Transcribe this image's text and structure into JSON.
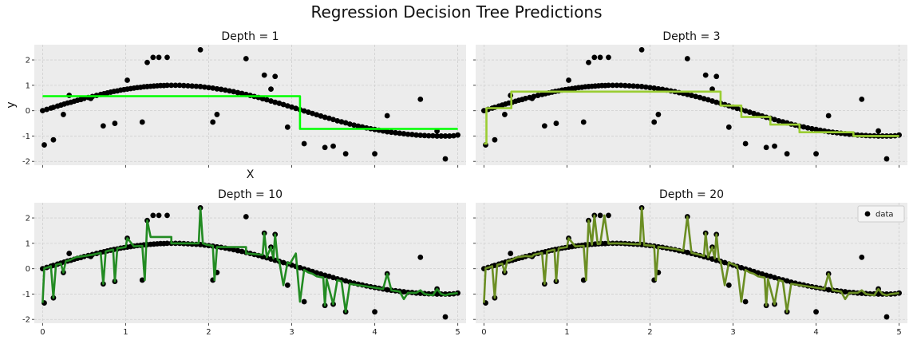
{
  "figure": {
    "suptitle": "Regression Decision Tree Predictions",
    "legend_label": "data"
  },
  "chart_data": {
    "type": "scatter",
    "grid": true,
    "xlim": [
      -0.1,
      5.1
    ],
    "ylim": [
      -2.15,
      2.6
    ],
    "xticks": [
      0,
      1,
      2,
      3,
      4,
      5
    ],
    "yticks": [
      -2,
      -1,
      0,
      1,
      2
    ],
    "data_color": "#000000",
    "data": {
      "x": [
        0.0,
        0.05,
        0.1,
        0.13,
        0.18,
        0.22,
        0.26,
        0.3,
        0.34,
        0.38,
        0.42,
        0.46,
        0.5,
        0.55,
        0.6,
        0.65,
        0.7,
        0.74,
        0.78,
        0.82,
        0.86,
        0.9,
        0.94,
        0.98,
        1.02,
        1.06,
        1.1,
        1.14,
        1.18,
        1.22,
        1.26,
        1.3,
        1.34,
        1.38,
        1.42,
        1.46,
        1.5,
        1.55,
        1.6,
        1.65,
        1.7,
        1.75,
        1.8,
        1.85,
        1.9,
        1.95,
        2.0,
        2.05,
        2.1,
        2.15,
        2.2,
        2.25,
        2.3,
        2.35,
        2.4,
        2.45,
        2.5,
        2.55,
        2.6,
        2.65,
        2.7,
        2.75,
        2.8,
        2.85,
        2.9,
        2.95,
        3.0,
        3.05,
        3.1,
        3.15,
        3.2,
        3.25,
        3.3,
        3.35,
        3.4,
        3.45,
        3.5,
        3.55,
        3.6,
        3.65,
        3.7,
        3.75,
        3.8,
        3.85,
        3.9,
        3.95,
        4.0,
        4.05,
        4.1,
        4.15,
        4.2,
        4.25,
        4.3,
        4.35,
        4.4,
        4.45,
        4.5,
        4.55,
        4.6,
        4.65,
        4.7,
        4.75,
        4.8,
        4.85,
        4.9,
        4.95,
        5.0,
        0.02,
        0.13,
        0.25,
        0.32,
        0.58,
        0.73,
        0.87,
        1.02,
        1.2,
        1.26,
        1.33,
        1.4,
        1.5,
        1.9,
        2.05,
        2.1,
        2.45,
        2.67,
        2.75,
        2.8,
        2.95,
        3.15,
        3.4,
        3.5,
        3.65,
        4.0,
        4.15,
        4.55,
        4.85,
        4.75
      ],
      "y": [
        0.0,
        0.05,
        0.1,
        0.13,
        0.18,
        0.22,
        0.26,
        0.3,
        0.33,
        0.37,
        0.41,
        0.44,
        0.48,
        0.52,
        0.56,
        0.6,
        0.64,
        0.67,
        0.7,
        0.73,
        0.76,
        0.78,
        0.81,
        0.83,
        0.85,
        0.87,
        0.89,
        0.91,
        0.92,
        0.94,
        0.95,
        0.96,
        0.97,
        0.98,
        0.99,
        0.99,
        1.0,
        1.0,
        1.0,
        1.0,
        0.99,
        0.98,
        0.97,
        0.96,
        0.95,
        0.93,
        0.91,
        0.89,
        0.86,
        0.84,
        0.81,
        0.78,
        0.75,
        0.71,
        0.68,
        0.64,
        0.6,
        0.56,
        0.52,
        0.47,
        0.43,
        0.38,
        0.33,
        0.29,
        0.24,
        0.19,
        0.14,
        0.09,
        0.04,
        -0.01,
        -0.06,
        -0.11,
        -0.16,
        -0.21,
        -0.26,
        -0.3,
        -0.35,
        -0.4,
        -0.44,
        -0.48,
        -0.53,
        -0.57,
        -0.61,
        -0.64,
        -0.68,
        -0.71,
        -0.74,
        -0.77,
        -0.8,
        -0.83,
        -0.85,
        -0.87,
        -0.89,
        -0.91,
        -0.93,
        -0.94,
        -0.96,
        -0.97,
        -0.98,
        -0.99,
        -0.99,
        -1.0,
        -1.0,
        -1.0,
        -1.0,
        -0.99,
        -0.96,
        -1.35,
        -1.15,
        -0.15,
        0.6,
        0.48,
        -0.6,
        -0.5,
        1.2,
        -0.45,
        1.9,
        2.1,
        2.1,
        2.1,
        2.4,
        -0.45,
        -0.15,
        2.05,
        1.4,
        0.85,
        1.35,
        -0.65,
        -1.3,
        -1.45,
        -1.4,
        -1.7,
        -1.7,
        -0.2,
        0.45,
        -1.9,
        -0.8
      ]
    },
    "panels": [
      {
        "title": "Depth = 1",
        "xlabel": "X",
        "ylabel": "y",
        "show_xticklabels": false,
        "show_yticklabels": true,
        "line_color": "#00ff00",
        "prediction": {
          "x": [
            0.0,
            3.1,
            3.1,
            5.0
          ],
          "y": [
            0.57,
            0.57,
            -0.72,
            -0.72
          ]
        }
      },
      {
        "title": "Depth = 3",
        "xlabel": "",
        "ylabel": "",
        "show_xticklabels": false,
        "show_yticklabels": false,
        "line_color": "#9acd32",
        "prediction": {
          "x": [
            0.0,
            0.03,
            0.03,
            0.33,
            0.33,
            2.85,
            2.85,
            3.1,
            3.1,
            3.45,
            3.45,
            3.8,
            3.8,
            4.45,
            4.45,
            4.55,
            4.55,
            5.0
          ],
          "y": [
            -1.3,
            -1.3,
            0.1,
            0.1,
            0.75,
            0.75,
            0.2,
            0.2,
            -0.25,
            -0.25,
            -0.55,
            -0.55,
            -0.85,
            -0.85,
            -1.0,
            -1.0,
            -1.0,
            -1.0
          ]
        }
      },
      {
        "title": "Depth = 10",
        "xlabel": "",
        "ylabel": "",
        "show_xticklabels": true,
        "show_yticklabels": true,
        "line_color": "#228b22",
        "prediction": {
          "x": [
            0.0,
            0.02,
            0.06,
            0.1,
            0.13,
            0.16,
            0.22,
            0.25,
            0.28,
            0.32,
            0.4,
            0.5,
            0.6,
            0.7,
            0.73,
            0.76,
            0.85,
            0.87,
            0.9,
            1.0,
            1.02,
            1.1,
            1.2,
            1.23,
            1.26,
            1.3,
            1.3,
            1.55,
            1.55,
            1.88,
            1.9,
            1.93,
            1.97,
            2.05,
            2.07,
            2.1,
            2.1,
            2.45,
            2.45,
            2.65,
            2.67,
            2.7,
            2.75,
            2.78,
            2.8,
            2.83,
            2.85,
            2.9,
            2.95,
            2.98,
            3.05,
            3.1,
            3.15,
            3.2,
            3.25,
            3.3,
            3.38,
            3.4,
            3.42,
            3.5,
            3.55,
            3.6,
            3.65,
            3.7,
            3.75,
            3.8,
            3.9,
            4.0,
            4.1,
            4.15,
            4.2,
            4.3,
            4.35,
            4.4,
            4.5,
            4.55,
            4.6,
            4.7,
            4.75,
            4.8,
            4.85,
            4.9,
            5.0
          ],
          "y": [
            -1.35,
            0.02,
            0.05,
            0.1,
            -1.15,
            0.15,
            0.2,
            -0.15,
            0.3,
            0.33,
            0.45,
            0.5,
            0.55,
            0.62,
            -0.6,
            0.68,
            0.75,
            -0.5,
            0.8,
            0.85,
            1.2,
            0.88,
            0.9,
            -0.45,
            1.9,
            1.25,
            1.25,
            1.25,
            1.0,
            1.0,
            2.4,
            1.0,
            0.95,
            0.9,
            -0.45,
            0.85,
            0.85,
            0.85,
            0.6,
            0.55,
            1.4,
            0.45,
            0.85,
            0.4,
            1.35,
            0.35,
            0.3,
            -0.65,
            0.25,
            0.2,
            0.6,
            -1.3,
            -0.05,
            -0.15,
            -0.2,
            -0.3,
            -0.35,
            -1.45,
            -0.4,
            -1.4,
            -0.45,
            -0.5,
            -1.7,
            -0.6,
            -0.62,
            -0.65,
            -0.7,
            -0.75,
            -0.8,
            -0.2,
            -0.85,
            -0.9,
            -1.2,
            -0.95,
            -0.95,
            -0.85,
            -1.0,
            -1.05,
            -0.8,
            -1.0,
            -1.05,
            -1.0,
            -0.96
          ]
        }
      },
      {
        "title": "Depth = 20",
        "xlabel": "",
        "ylabel": "",
        "show_xticklabels": true,
        "show_yticklabels": false,
        "line_color": "#6b8e23",
        "prediction": {
          "x": [
            0.0,
            0.02,
            0.06,
            0.1,
            0.13,
            0.16,
            0.22,
            0.25,
            0.28,
            0.32,
            0.4,
            0.5,
            0.58,
            0.6,
            0.7,
            0.73,
            0.76,
            0.85,
            0.87,
            0.9,
            1.0,
            1.02,
            1.1,
            1.2,
            1.23,
            1.26,
            1.3,
            1.33,
            1.37,
            1.4,
            1.45,
            1.5,
            1.55,
            1.6,
            1.7,
            1.8,
            1.88,
            1.9,
            1.93,
            1.97,
            2.05,
            2.07,
            2.1,
            2.2,
            2.3,
            2.4,
            2.45,
            2.5,
            2.6,
            2.65,
            2.67,
            2.7,
            2.75,
            2.78,
            2.8,
            2.83,
            2.85,
            2.9,
            2.95,
            2.98,
            3.05,
            3.1,
            3.15,
            3.2,
            3.25,
            3.3,
            3.38,
            3.4,
            3.42,
            3.5,
            3.55,
            3.6,
            3.65,
            3.7,
            3.75,
            3.8,
            3.9,
            4.0,
            4.1,
            4.15,
            4.2,
            4.3,
            4.35,
            4.4,
            4.5,
            4.55,
            4.6,
            4.7,
            4.75,
            4.8,
            4.85,
            4.9,
            5.0
          ],
          "y": [
            -1.35,
            0.02,
            0.05,
            0.1,
            -1.15,
            0.15,
            0.2,
            -0.15,
            0.3,
            0.33,
            0.45,
            0.5,
            0.48,
            0.55,
            0.62,
            -0.6,
            0.68,
            0.75,
            -0.5,
            0.8,
            0.85,
            1.2,
            0.88,
            0.9,
            -0.45,
            1.9,
            0.95,
            2.1,
            0.97,
            0.98,
            2.1,
            0.99,
            1.0,
            1.0,
            0.99,
            0.97,
            0.96,
            2.4,
            0.93,
            0.92,
            0.9,
            -0.45,
            0.86,
            0.82,
            0.78,
            0.7,
            2.05,
            0.62,
            0.55,
            0.5,
            1.4,
            0.45,
            0.85,
            0.4,
            1.35,
            0.35,
            0.3,
            -0.65,
            0.25,
            0.2,
            0.1,
            -1.3,
            -0.05,
            -0.15,
            -0.2,
            -0.3,
            -0.35,
            -1.45,
            -0.4,
            -1.4,
            -0.45,
            -0.5,
            -1.7,
            -0.6,
            -0.62,
            -0.65,
            -0.7,
            -0.75,
            -0.8,
            -0.2,
            -0.85,
            -0.9,
            -1.2,
            -0.95,
            -0.95,
            -0.85,
            -1.0,
            -1.05,
            -0.8,
            -1.0,
            -1.05,
            -1.0,
            -0.96
          ]
        }
      }
    ],
    "legend": {
      "panel": 3,
      "position": "top-right",
      "entries": [
        "data"
      ]
    }
  }
}
